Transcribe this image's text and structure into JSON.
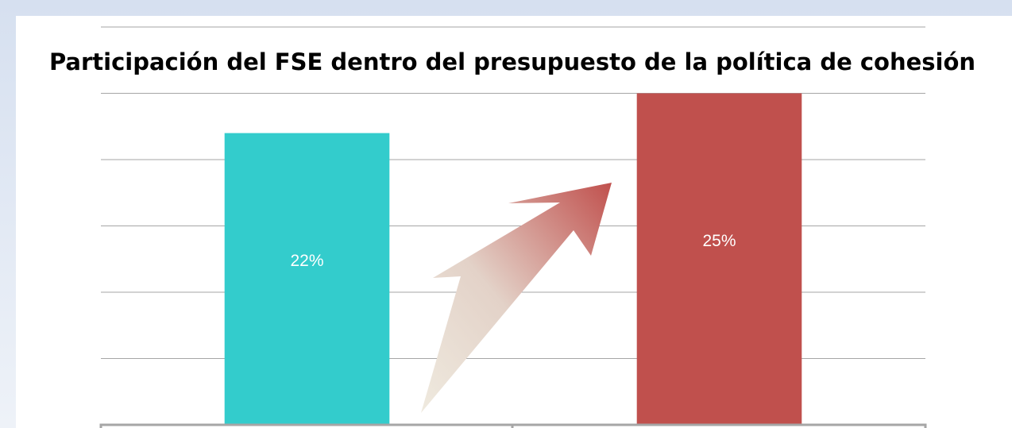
{
  "chart_data": {
    "type": "bar",
    "title": "Participación del FSE dentro del presupuesto de la política de cohesión",
    "categories": [
      null,
      null
    ],
    "values": [
      22,
      25
    ],
    "value_labels": [
      "22%",
      "25%"
    ],
    "colors": [
      "#33cccc",
      "#c0504d"
    ],
    "ylim": [
      0,
      30
    ],
    "yticks": [
      0,
      5,
      10,
      15,
      20,
      25,
      30
    ],
    "grid": true
  }
}
